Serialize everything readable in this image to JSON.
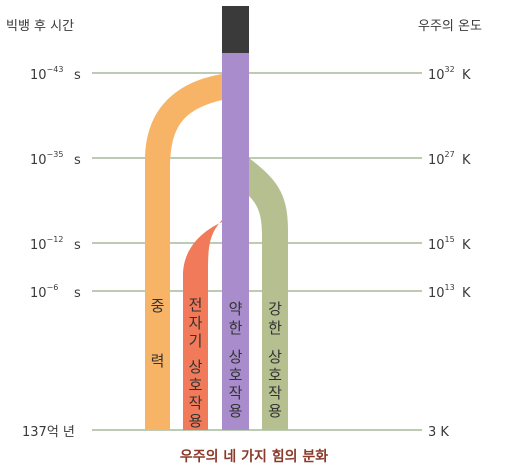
{
  "headers": {
    "left": "빅뱅 후 시간",
    "right": "우주의 온도"
  },
  "rows": [
    {
      "time_base": "10",
      "time_exp": "−43",
      "time_unit": "s",
      "temp_base": "10",
      "temp_exp": "32",
      "temp_unit": "K"
    },
    {
      "time_base": "10",
      "time_exp": "−35",
      "time_unit": "s",
      "temp_base": "10",
      "temp_exp": "27",
      "temp_unit": "K"
    },
    {
      "time_base": "10",
      "time_exp": "−12",
      "time_unit": "s",
      "temp_base": "10",
      "temp_exp": "15",
      "temp_unit": "K"
    },
    {
      "time_base": "10",
      "time_exp": "−6",
      "time_unit": "s",
      "temp_base": "10",
      "temp_exp": "13",
      "temp_unit": "K"
    },
    {
      "time_base": "137억 년",
      "time_exp": "",
      "time_unit": "",
      "temp_base": "3 K",
      "temp_exp": "",
      "temp_unit": ""
    }
  ],
  "forces": {
    "gravity": {
      "chars": [
        "중",
        "력"
      ],
      "color": "#f7b366"
    },
    "electromagnetic": {
      "chars": [
        "전",
        "자",
        "기",
        "상",
        "호",
        "작",
        "용"
      ],
      "color": "#f07a5a"
    },
    "weak": {
      "chars": [
        "약",
        "한",
        "상",
        "호",
        "작",
        "용"
      ],
      "color": "#a98ccc"
    },
    "strong": {
      "chars": [
        "강",
        "한",
        "상",
        "호",
        "작",
        "용"
      ],
      "color": "#b5bf8f"
    },
    "unified_color": "#3a3a3a"
  },
  "caption": "우주의 네 가지 힘의 분화"
}
